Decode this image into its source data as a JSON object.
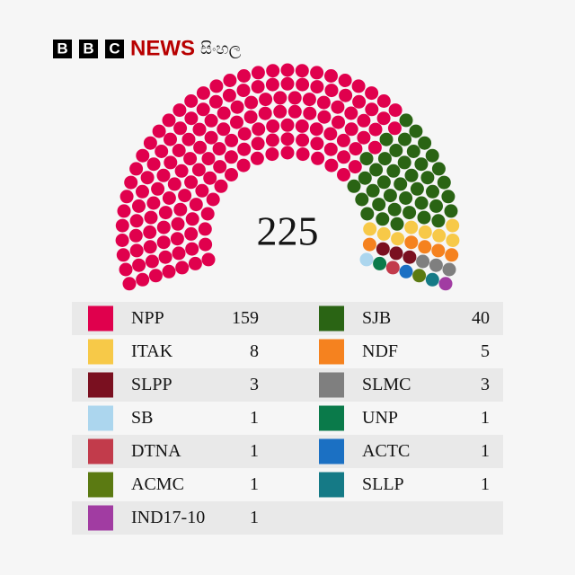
{
  "header": {
    "logo": [
      "B",
      "B",
      "C"
    ],
    "brand": "NEWS",
    "language": "සිංහල"
  },
  "chart_data": {
    "type": "parliament",
    "total": 225,
    "series": [
      {
        "name": "NPP",
        "color": "#e0004d",
        "values": [
          159
        ]
      },
      {
        "name": "SJB",
        "color": "#2a6414",
        "values": [
          40
        ]
      },
      {
        "name": "ITAK",
        "color": "#f7c948",
        "values": [
          8
        ]
      },
      {
        "name": "NDF",
        "color": "#f5821f",
        "values": [
          5
        ]
      },
      {
        "name": "SLPP",
        "color": "#7a1020",
        "values": [
          3
        ]
      },
      {
        "name": "SLMC",
        "color": "#7f7f7f",
        "values": [
          3
        ]
      },
      {
        "name": "SB",
        "color": "#acd6ee",
        "values": [
          1
        ]
      },
      {
        "name": "UNP",
        "color": "#0a7a4a",
        "values": [
          1
        ]
      },
      {
        "name": "DTNA",
        "color": "#c23b4b",
        "values": [
          1
        ]
      },
      {
        "name": "ACTC",
        "color": "#1b70c3",
        "values": [
          1
        ]
      },
      {
        "name": "ACMC",
        "color": "#5b7a12",
        "values": [
          1
        ]
      },
      {
        "name": "SLLP",
        "color": "#157a86",
        "values": [
          1
        ]
      },
      {
        "name": "IND17-10",
        "color": "#a13ca2",
        "values": [
          1
        ]
      }
    ]
  }
}
